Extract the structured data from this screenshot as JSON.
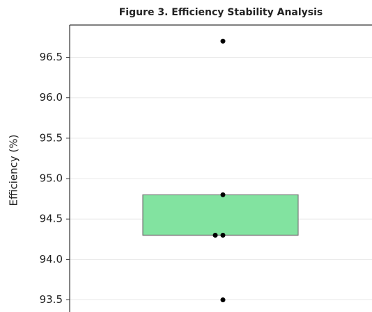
{
  "chart_data": {
    "type": "box",
    "title": "Figure 3. Efficiency Stability Analysis",
    "y_label": "Efficiency (%)",
    "box": {
      "q1": 94.3,
      "median": 94.3,
      "q3": 94.8,
      "color": "#82e3a0"
    },
    "points": [
      96.7,
      94.8,
      94.3,
      94.3,
      93.5
    ],
    "point_color": "#000000",
    "ylim": [
      93.35,
      96.9
    ],
    "yticks": [
      {
        "value": 93.5,
        "label": "93.5"
      },
      {
        "value": 94.0,
        "label": "94.0"
      },
      {
        "value": 94.5,
        "label": "94.5"
      },
      {
        "value": 95.0,
        "label": "95.0"
      },
      {
        "value": 95.5,
        "label": "95.5"
      },
      {
        "value": 96.0,
        "label": "96.0"
      },
      {
        "value": 96.5,
        "label": "96.5"
      }
    ],
    "grid": true
  }
}
